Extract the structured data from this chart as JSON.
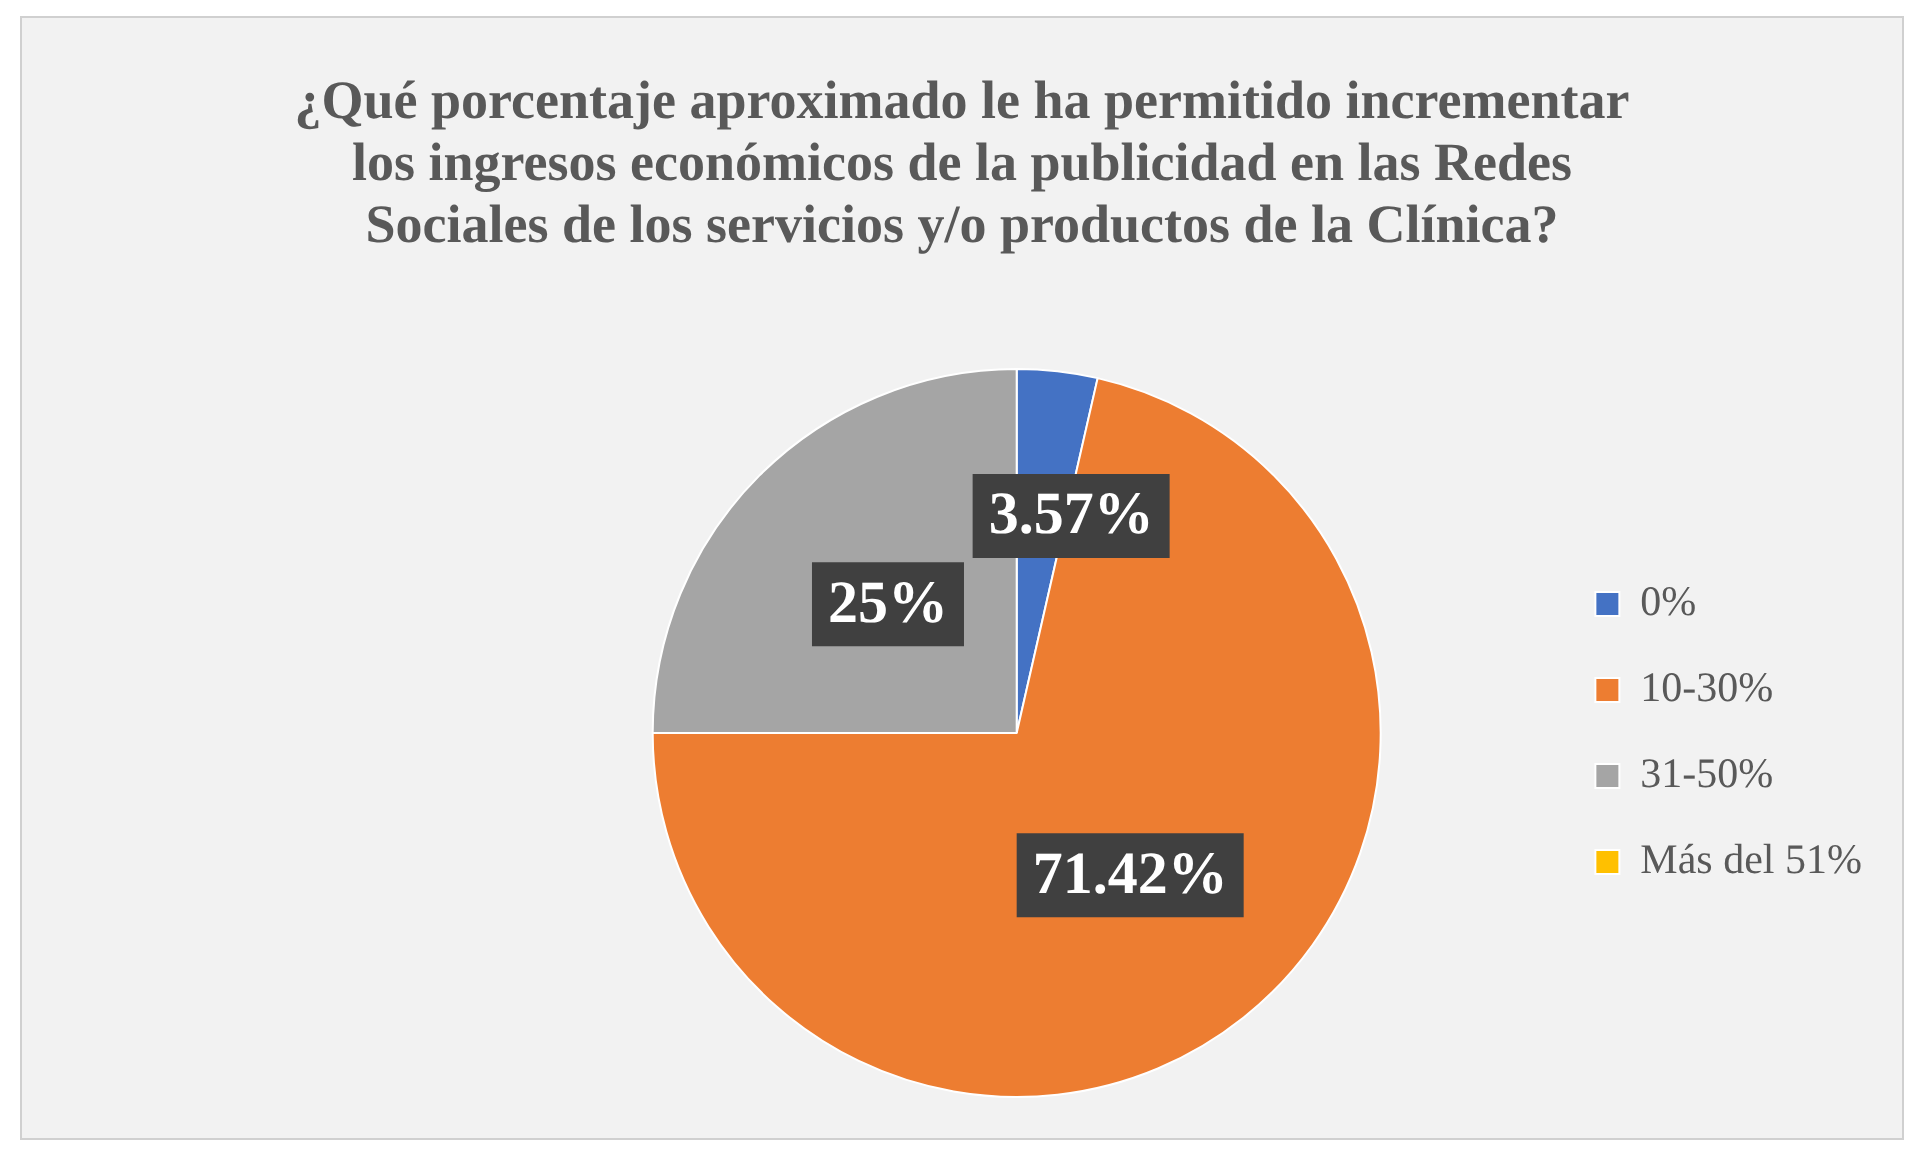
{
  "chart_data": {
    "type": "pie",
    "title": "¿Qué porcentaje aproximado le ha permitido incrementar los ingresos económicos de la publicidad en las Redes Sociales de los servicios y/o productos de la Clínica?",
    "categories": [
      "0%",
      "10-30%",
      "31-50%",
      "Más del 51%"
    ],
    "values": [
      3.57,
      71.42,
      25,
      0
    ],
    "colors": [
      "#4472c4",
      "#ed7d31",
      "#a5a5a5",
      "#ffc000"
    ],
    "value_labels": [
      "3.57%",
      "71.42%",
      "25%",
      null
    ],
    "legend": "right"
  }
}
